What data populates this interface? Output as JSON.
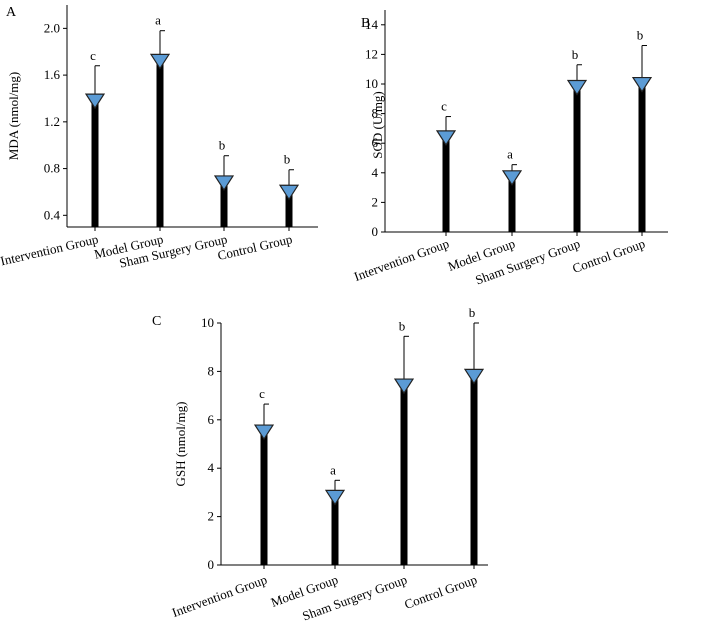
{
  "chart_data": [
    {
      "type": "bar",
      "panel": "A",
      "ylabel": "MDA (nmol/mg)",
      "xlabel": "",
      "categories": [
        "Intervention Group",
        "Model Group",
        "Sham Surgery Group",
        "Control Group"
      ],
      "values": [
        1.42,
        1.76,
        0.72,
        0.64
      ],
      "error": [
        0.26,
        0.22,
        0.19,
        0.15
      ],
      "significance": [
        "c",
        "a",
        "b",
        "b"
      ],
      "ylim": [
        0.3,
        2.2
      ],
      "yticks": [
        "0.4",
        "0.8",
        "1.2",
        "1.6",
        "2.0"
      ],
      "marker_color": "#5b9bd5"
    },
    {
      "type": "bar",
      "panel": "B",
      "ylabel": "SOD (U/mg)",
      "xlabel": "",
      "categories": [
        "Intervention Group",
        "Model Group",
        "Sham Surgery Group",
        "Control Group"
      ],
      "values": [
        6.7,
        4.0,
        10.1,
        10.3
      ],
      "error": [
        1.1,
        0.55,
        1.2,
        2.3
      ],
      "significance": [
        "c",
        "a",
        "b",
        "b"
      ],
      "ylim": [
        0,
        15
      ],
      "yticks": [
        "0",
        "2",
        "4",
        "6",
        "8",
        "10",
        "12",
        "14"
      ],
      "marker_color": "#5b9bd5"
    },
    {
      "type": "bar",
      "panel": "C",
      "ylabel": "GSH (nmol/mg)",
      "xlabel": "",
      "categories": [
        "Intervention Group",
        "Model Group",
        "Sham Surgery Group",
        "Control Group"
      ],
      "values": [
        5.7,
        3.0,
        7.6,
        8.0
      ],
      "error": [
        0.95,
        0.5,
        1.85,
        2.0
      ],
      "significance": [
        "c",
        "a",
        "b",
        "b"
      ],
      "ylim": [
        0,
        10
      ],
      "yticks": [
        "0",
        "2",
        "4",
        "6",
        "8",
        "10"
      ],
      "marker_color": "#5b9bd5"
    }
  ]
}
